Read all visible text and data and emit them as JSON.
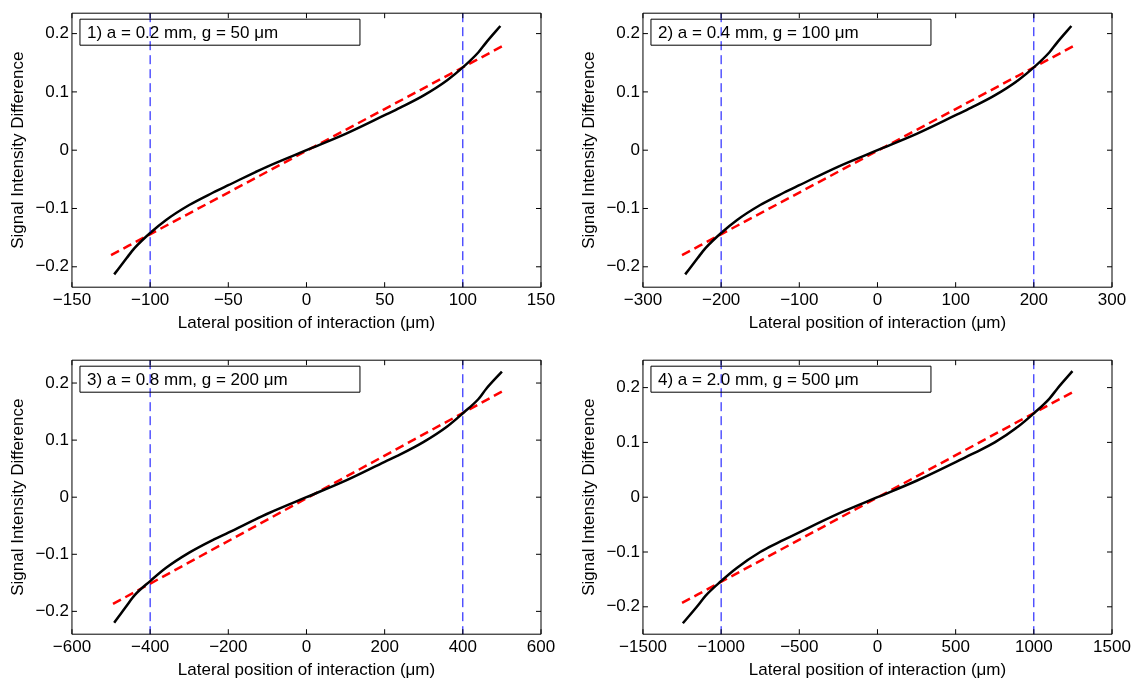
{
  "chart_data": [
    {
      "type": "line",
      "annotations": [
        "1) a = 0.2 mm, g = 50 μm"
      ],
      "xlabel": "Lateral position of interaction (μm)",
      "ylabel": "Signal Intensity Difference",
      "xlim": [
        -150,
        150
      ],
      "xticks": [
        -150,
        -100,
        -50,
        0,
        50,
        100,
        150
      ],
      "ylim": [
        -0.235,
        0.235
      ],
      "yticks": [
        -0.2,
        -0.1,
        0,
        0.1,
        0.2
      ],
      "grid": false,
      "legend": false,
      "marker": "none",
      "series": [
        {
          "color": "#000000",
          "line_style": "solid",
          "x": [
            -123,
            -115,
            -110,
            -100,
            -90,
            -75,
            -60,
            -50,
            -25,
            0,
            25,
            50,
            60,
            75,
            90,
            100,
            110,
            115,
            124
          ],
          "values": [
            -0.213,
            -0.185,
            -0.168,
            -0.142,
            -0.12,
            -0.094,
            -0.073,
            -0.06,
            -0.028,
            0,
            0.028,
            0.06,
            0.073,
            0.094,
            0.12,
            0.142,
            0.168,
            0.185,
            0.213
          ]
        },
        {
          "color": "#ff0000",
          "line_style": "dashed",
          "x": [
            -125,
            125
          ],
          "values": [
            -0.18,
            0.178
          ]
        }
      ],
      "ref_lines": [
        {
          "axis": "x",
          "value": -100,
          "color": "#0000ff",
          "line_style": "dashed"
        },
        {
          "axis": "x",
          "value": 100,
          "color": "#0000ff",
          "line_style": "dashed"
        }
      ]
    },
    {
      "type": "line",
      "annotations": [
        "2) a = 0.4 mm, g = 100 μm"
      ],
      "xlabel": "Lateral position of interaction (μm)",
      "ylabel": "Signal Intensity Difference",
      "xlim": [
        -300,
        300
      ],
      "xticks": [
        -300,
        -200,
        -100,
        0,
        100,
        200,
        300
      ],
      "ylim": [
        -0.235,
        0.235
      ],
      "yticks": [
        -0.2,
        -0.1,
        0,
        0.1,
        0.2
      ],
      "grid": false,
      "legend": false,
      "marker": "none",
      "series": [
        {
          "color": "#000000",
          "line_style": "solid",
          "x": [
            -246,
            -230,
            -220,
            -200,
            -180,
            -150,
            -120,
            -100,
            -50,
            0,
            50,
            100,
            120,
            150,
            180,
            200,
            220,
            230,
            248
          ],
          "values": [
            -0.213,
            -0.185,
            -0.168,
            -0.142,
            -0.12,
            -0.094,
            -0.073,
            -0.06,
            -0.028,
            0,
            0.028,
            0.06,
            0.073,
            0.094,
            0.12,
            0.142,
            0.168,
            0.185,
            0.213
          ]
        },
        {
          "color": "#ff0000",
          "line_style": "dashed",
          "x": [
            -250,
            250
          ],
          "values": [
            -0.18,
            0.178
          ]
        }
      ],
      "ref_lines": [
        {
          "axis": "x",
          "value": -200,
          "color": "#0000ff",
          "line_style": "dashed"
        },
        {
          "axis": "x",
          "value": 200,
          "color": "#0000ff",
          "line_style": "dashed"
        }
      ]
    },
    {
      "type": "line",
      "annotations": [
        "3) a = 0.8 mm, g = 200 μm"
      ],
      "xlabel": "Lateral position of interaction (μm)",
      "ylabel": "Signal Intensity Difference",
      "xlim": [
        -600,
        600
      ],
      "xticks": [
        -600,
        -400,
        -200,
        0,
        200,
        400,
        600
      ],
      "ylim": [
        -0.24,
        0.24
      ],
      "yticks": [
        -0.2,
        -0.1,
        0,
        0.1,
        0.2
      ],
      "grid": false,
      "legend": false,
      "marker": "none",
      "series": [
        {
          "color": "#000000",
          "line_style": "solid",
          "x": [
            -492,
            -460,
            -440,
            -400,
            -360,
            -300,
            -240,
            -200,
            -100,
            0,
            100,
            200,
            240,
            300,
            360,
            400,
            440,
            460,
            500
          ],
          "values": [
            -0.22,
            -0.19,
            -0.172,
            -0.147,
            -0.124,
            -0.097,
            -0.075,
            -0.062,
            -0.029,
            0,
            0.029,
            0.062,
            0.075,
            0.097,
            0.124,
            0.147,
            0.172,
            0.19,
            0.22
          ]
        },
        {
          "color": "#ff0000",
          "line_style": "dashed",
          "x": [
            -495,
            500
          ],
          "values": [
            -0.187,
            0.185
          ]
        }
      ],
      "ref_lines": [
        {
          "axis": "x",
          "value": -400,
          "color": "#0000ff",
          "line_style": "dashed"
        },
        {
          "axis": "x",
          "value": 400,
          "color": "#0000ff",
          "line_style": "dashed"
        }
      ]
    },
    {
      "type": "line",
      "annotations": [
        "4) a = 2.0 mm, g = 500 μm"
      ],
      "xlabel": "Lateral position of interaction (μm)",
      "ylabel": "Signal Intensity Difference",
      "xlim": [
        -1500,
        1500
      ],
      "xticks": [
        -1500,
        -1000,
        -500,
        0,
        500,
        1000,
        1500
      ],
      "ylim": [
        -0.25,
        0.25
      ],
      "yticks": [
        -0.2,
        -0.1,
        0,
        0.1,
        0.2
      ],
      "grid": false,
      "legend": false,
      "marker": "none",
      "series": [
        {
          "color": "#000000",
          "line_style": "solid",
          "x": [
            -1245,
            -1150,
            -1100,
            -1000,
            -900,
            -750,
            -600,
            -500,
            -250,
            0,
            250,
            500,
            600,
            750,
            900,
            1000,
            1100,
            1150,
            1247
          ],
          "values": [
            -0.23,
            -0.198,
            -0.18,
            -0.153,
            -0.129,
            -0.1,
            -0.078,
            -0.064,
            -0.03,
            0,
            0.03,
            0.064,
            0.078,
            0.1,
            0.129,
            0.153,
            0.18,
            0.198,
            0.23
          ]
        },
        {
          "color": "#ff0000",
          "line_style": "dashed",
          "x": [
            -1250,
            1250
          ],
          "values": [
            -0.193,
            0.192
          ]
        }
      ],
      "ref_lines": [
        {
          "axis": "x",
          "value": -1000,
          "color": "#0000ff",
          "line_style": "dashed"
        },
        {
          "axis": "x",
          "value": 1000,
          "color": "#0000ff",
          "line_style": "dashed"
        }
      ]
    }
  ]
}
